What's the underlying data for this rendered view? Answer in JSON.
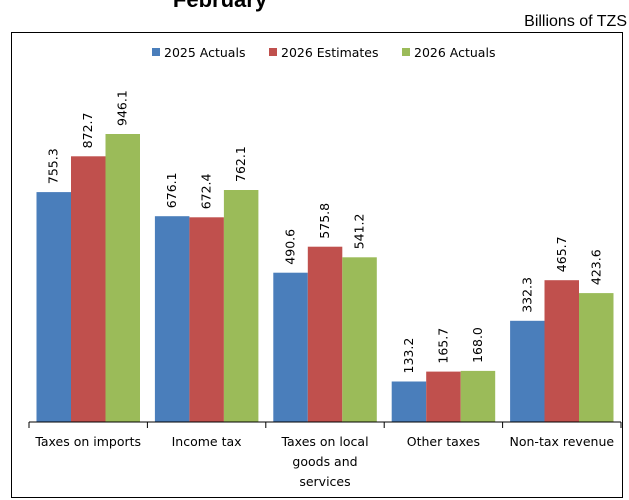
{
  "header": {
    "title": "February",
    "unit": "Billions of TZS"
  },
  "chart_data": {
    "type": "bar",
    "categories": [
      [
        "Taxes on imports"
      ],
      [
        "Income tax"
      ],
      [
        "Taxes on local",
        "goods and",
        "services"
      ],
      [
        "Other taxes"
      ],
      [
        "Non-tax revenue"
      ]
    ],
    "series": [
      {
        "name": "2025 Actuals",
        "color": "#4a7ebb",
        "values": [
          755.3,
          676.1,
          490.6,
          133.2,
          332.3
        ]
      },
      {
        "name": "2026 Estimates",
        "color": "#c0504d",
        "values": [
          872.7,
          672.4,
          575.8,
          165.7,
          465.7
        ]
      },
      {
        "name": "2026 Actuals",
        "color": "#9bbb59",
        "values": [
          946.1,
          762.1,
          541.2,
          168.0,
          423.6
        ]
      }
    ],
    "ylim": [
      0,
      1000
    ],
    "legend": "top-center",
    "grid": false
  }
}
